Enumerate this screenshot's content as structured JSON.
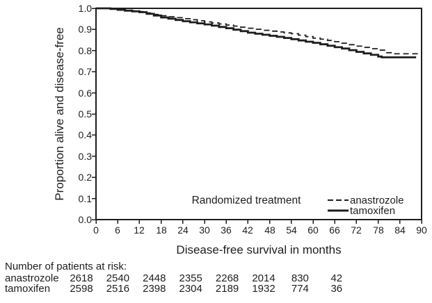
{
  "figure": {
    "colors": {
      "ink": "#1d1d1d",
      "background": "#ffffff"
    },
    "y_axis": {
      "title": "Proportion alive and disease-free"
    },
    "x_axis": {
      "title": "Disease-free survival in months"
    },
    "legend": {
      "title": "Randomized treatment",
      "items": [
        {
          "label": "anastrozole",
          "line": "dashed"
        },
        {
          "label": "tamoxifen",
          "line": "solid"
        }
      ]
    },
    "risk_table": {
      "heading": "Number of patients at risk:",
      "rows": [
        {
          "label": "anastrozole",
          "counts": [
            "2618",
            "2540",
            "2448",
            "2355",
            "2268",
            "2014",
            "830",
            "42"
          ]
        },
        {
          "label": "tamoxifen",
          "counts": [
            "2598",
            "2516",
            "2398",
            "2304",
            "2189",
            "1932",
            "774",
            "36"
          ]
        }
      ]
    }
  },
  "chart_data": {
    "type": "line",
    "subtype": "kaplan-meier-step",
    "title": "",
    "xlabel": "Disease-free survival in months",
    "ylabel": "Proportion alive and disease-free",
    "xlim": [
      0,
      90
    ],
    "ylim": [
      0.0,
      1.0
    ],
    "grid": false,
    "legend_position": "inside-bottom-right",
    "x_ticks": [
      0,
      6,
      12,
      18,
      24,
      30,
      36,
      42,
      48,
      54,
      60,
      66,
      72,
      78,
      84,
      90
    ],
    "y_ticks": [
      [
        1.0,
        "1.0"
      ],
      [
        0.9,
        "0.9"
      ],
      [
        0.8,
        "0.8"
      ],
      [
        0.7,
        "0.7"
      ],
      [
        0.6,
        "0.6"
      ],
      [
        0.5,
        "0.5"
      ],
      [
        0.4,
        "0.4"
      ],
      [
        0.3,
        "0.3"
      ],
      [
        0.2,
        "0.2"
      ],
      [
        0.1,
        "0.1"
      ],
      [
        0.0,
        "0.0"
      ]
    ],
    "series": [
      {
        "name": "anastrozole",
        "line": "dashed",
        "points": [
          [
            0,
            1.0
          ],
          [
            4,
            0.998
          ],
          [
            6,
            0.995
          ],
          [
            8,
            0.991
          ],
          [
            10,
            0.988
          ],
          [
            12,
            0.985
          ],
          [
            14,
            0.978
          ],
          [
            16,
            0.971
          ],
          [
            18,
            0.965
          ],
          [
            20,
            0.96
          ],
          [
            22,
            0.956
          ],
          [
            24,
            0.951
          ],
          [
            26,
            0.946
          ],
          [
            28,
            0.941
          ],
          [
            30,
            0.936
          ],
          [
            32,
            0.931
          ],
          [
            34,
            0.926
          ],
          [
            36,
            0.921
          ],
          [
            38,
            0.916
          ],
          [
            40,
            0.911
          ],
          [
            42,
            0.906
          ],
          [
            44,
            0.901
          ],
          [
            46,
            0.896
          ],
          [
            48,
            0.892
          ],
          [
            50,
            0.888
          ],
          [
            52,
            0.884
          ],
          [
            54,
            0.88
          ],
          [
            56,
            0.873
          ],
          [
            58,
            0.866
          ],
          [
            60,
            0.859
          ],
          [
            62,
            0.854
          ],
          [
            64,
            0.848
          ],
          [
            66,
            0.842
          ],
          [
            68,
            0.835
          ],
          [
            70,
            0.828
          ],
          [
            72,
            0.821
          ],
          [
            74,
            0.815
          ],
          [
            76,
            0.809
          ],
          [
            78,
            0.802
          ],
          [
            80,
            0.79
          ],
          [
            82,
            0.785
          ],
          [
            89.5,
            0.785
          ]
        ]
      },
      {
        "name": "tamoxifen",
        "line": "solid",
        "points": [
          [
            0,
            1.0
          ],
          [
            4,
            0.997
          ],
          [
            6,
            0.993
          ],
          [
            8,
            0.989
          ],
          [
            10,
            0.986
          ],
          [
            12,
            0.982
          ],
          [
            14,
            0.974
          ],
          [
            16,
            0.966
          ],
          [
            18,
            0.957
          ],
          [
            20,
            0.951
          ],
          [
            22,
            0.945
          ],
          [
            24,
            0.939
          ],
          [
            26,
            0.934
          ],
          [
            28,
            0.929
          ],
          [
            30,
            0.924
          ],
          [
            32,
            0.918
          ],
          [
            34,
            0.912
          ],
          [
            36,
            0.906
          ],
          [
            38,
            0.899
          ],
          [
            40,
            0.892
          ],
          [
            42,
            0.885
          ],
          [
            44,
            0.88
          ],
          [
            46,
            0.875
          ],
          [
            48,
            0.87
          ],
          [
            50,
            0.865
          ],
          [
            52,
            0.86
          ],
          [
            54,
            0.854
          ],
          [
            56,
            0.848
          ],
          [
            58,
            0.842
          ],
          [
            60,
            0.837
          ],
          [
            62,
            0.83
          ],
          [
            64,
            0.823
          ],
          [
            66,
            0.816
          ],
          [
            68,
            0.81
          ],
          [
            70,
            0.802
          ],
          [
            72,
            0.794
          ],
          [
            74,
            0.787
          ],
          [
            76,
            0.78
          ],
          [
            78,
            0.772
          ],
          [
            79,
            0.768
          ],
          [
            88.5,
            0.768
          ]
        ]
      }
    ],
    "at_risk_times": [
      0,
      12,
      24,
      36,
      48,
      60,
      72,
      84
    ]
  }
}
